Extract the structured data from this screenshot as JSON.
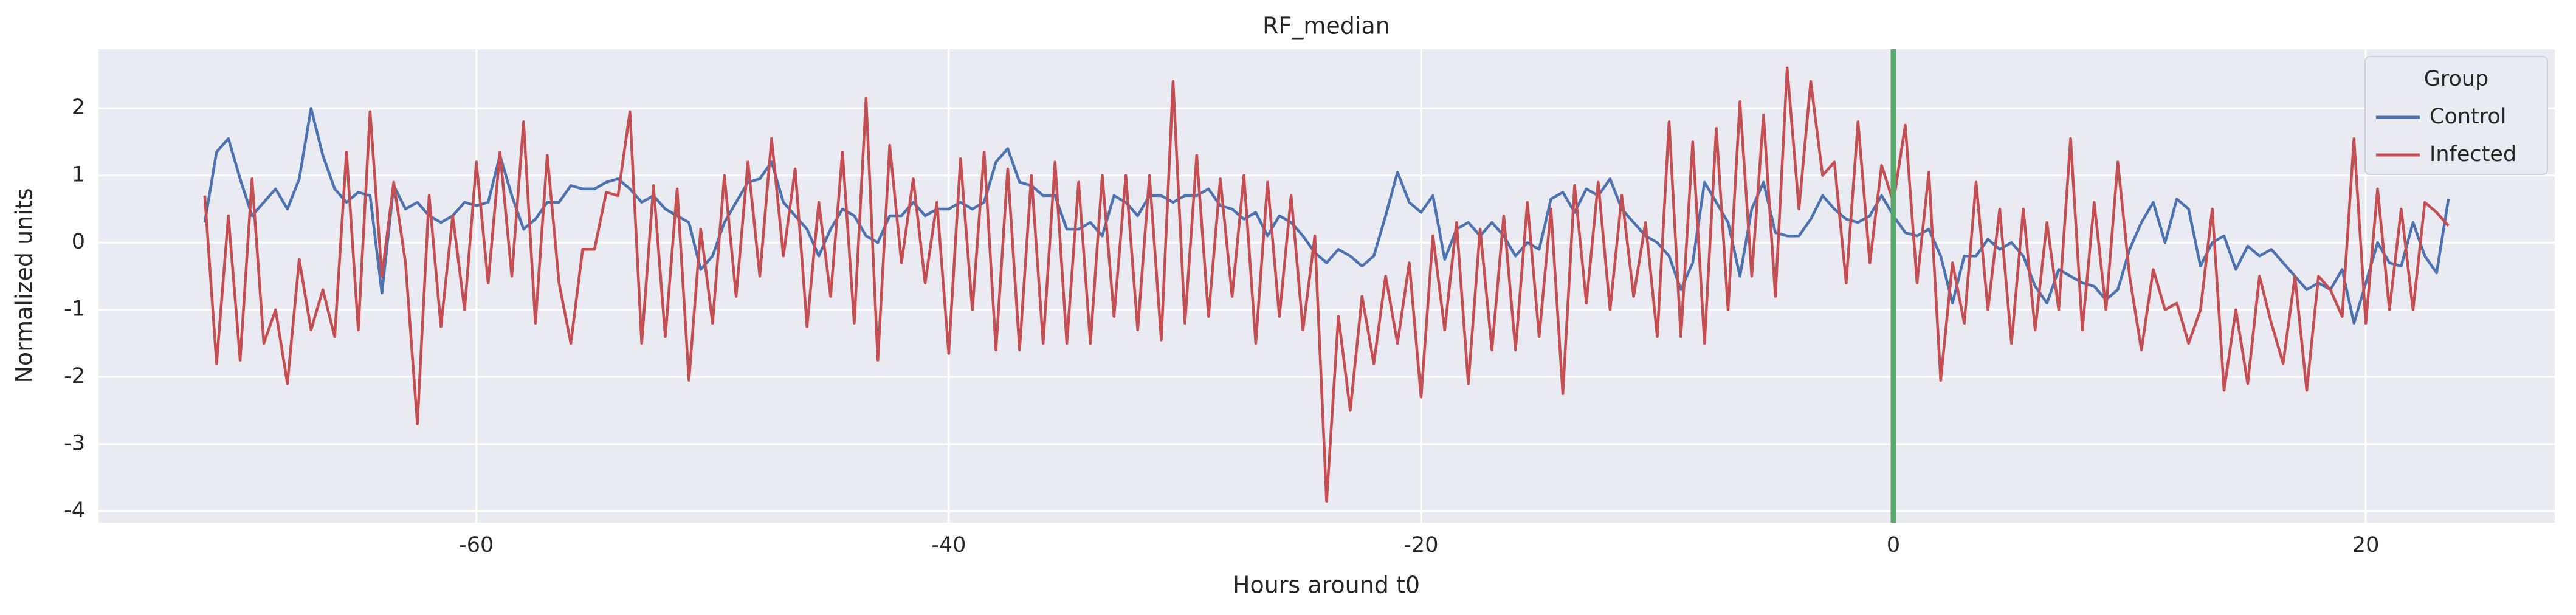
{
  "chart_data": {
    "type": "line",
    "title": "RF_median",
    "x_label": "Hours around t0",
    "y_label": "Normalized units",
    "legend_title": "Group",
    "legend": "upper right",
    "grid": true,
    "xlim": [
      -76,
      28
    ],
    "ylim": [
      -4.17,
      2.88
    ],
    "xticks": [
      -60,
      -40,
      -20,
      0,
      20
    ],
    "yticks": [
      -4,
      -3,
      -2,
      -1,
      0,
      1,
      2
    ],
    "vline": {
      "x": 0,
      "color": "#55a868"
    },
    "x": [
      -71.5,
      -71,
      -70.5,
      -70,
      -69.5,
      -69,
      -68.5,
      -68,
      -67.5,
      -67,
      -66.5,
      -66,
      -65.5,
      -65,
      -64.5,
      -64,
      -63.5,
      -63,
      -62.5,
      -62,
      -61.5,
      -61,
      -60.5,
      -60,
      -59.5,
      -59,
      -58.5,
      -58,
      -57.5,
      -57,
      -56.5,
      -56,
      -55.5,
      -55,
      -54.5,
      -54,
      -53.5,
      -53,
      -52.5,
      -52,
      -51.5,
      -51,
      -50.5,
      -50,
      -49.5,
      -49,
      -48.5,
      -48,
      -47.5,
      -47,
      -46.5,
      -46,
      -45.5,
      -45,
      -44.5,
      -44,
      -43.5,
      -43,
      -42.5,
      -42,
      -41.5,
      -41,
      -40.5,
      -40,
      -39.5,
      -39,
      -38.5,
      -38,
      -37.5,
      -37,
      -36.5,
      -36,
      -35.5,
      -35,
      -34.5,
      -34,
      -33.5,
      -33,
      -32.5,
      -32,
      -31.5,
      -31,
      -30.5,
      -30,
      -29.5,
      -29,
      -28.5,
      -28,
      -27.5,
      -27,
      -26.5,
      -26,
      -25.5,
      -25,
      -24.5,
      -24,
      -23.5,
      -23,
      -22.5,
      -22,
      -21.5,
      -21,
      -20.5,
      -20,
      -19.5,
      -19,
      -18.5,
      -18,
      -17.5,
      -17,
      -16.5,
      -16,
      -15.5,
      -15,
      -14.5,
      -14,
      -13.5,
      -13,
      -12.5,
      -12,
      -11.5,
      -11,
      -10.5,
      -10,
      -9.5,
      -9,
      -8.5,
      -8,
      -7.5,
      -7,
      -6.5,
      -6,
      -5.5,
      -5,
      -4.5,
      -4,
      -3.5,
      -3,
      -2.5,
      -2,
      -1.5,
      -1,
      -0.5,
      0,
      0.5,
      1,
      1.5,
      2,
      2.5,
      3,
      3.5,
      4,
      4.5,
      5,
      5.5,
      6,
      6.5,
      7,
      7.5,
      8,
      8.5,
      9,
      9.5,
      10,
      10.5,
      11,
      11.5,
      12,
      12.5,
      13,
      13.5,
      14,
      14.5,
      15,
      15.5,
      16,
      16.5,
      17,
      17.5,
      18,
      18.5,
      19,
      19.5,
      20,
      20.5,
      21,
      21.5,
      22,
      22.5,
      23,
      23.5
    ],
    "series": [
      {
        "name": "Control",
        "color": "#4c72b0",
        "values": [
          0.3,
          1.35,
          1.55,
          0.95,
          0.4,
          0.6,
          0.8,
          0.5,
          0.95,
          2.0,
          1.3,
          0.8,
          0.6,
          0.75,
          0.7,
          -0.75,
          0.85,
          0.5,
          0.6,
          0.4,
          0.3,
          0.4,
          0.6,
          0.55,
          0.6,
          1.3,
          0.7,
          0.2,
          0.35,
          0.6,
          0.6,
          0.85,
          0.8,
          0.8,
          0.9,
          0.95,
          0.8,
          0.6,
          0.7,
          0.5,
          0.4,
          0.3,
          -0.4,
          -0.2,
          0.3,
          0.6,
          0.9,
          0.95,
          1.2,
          0.6,
          0.4,
          0.2,
          -0.2,
          0.2,
          0.5,
          0.4,
          0.1,
          0.0,
          0.4,
          0.4,
          0.6,
          0.4,
          0.5,
          0.5,
          0.6,
          0.5,
          0.6,
          1.2,
          1.4,
          0.9,
          0.85,
          0.7,
          0.7,
          0.2,
          0.2,
          0.3,
          0.1,
          0.7,
          0.6,
          0.4,
          0.7,
          0.7,
          0.6,
          0.7,
          0.7,
          0.8,
          0.55,
          0.5,
          0.35,
          0.45,
          0.1,
          0.4,
          0.3,
          0.1,
          -0.15,
          -0.3,
          -0.1,
          -0.2,
          -0.35,
          -0.2,
          0.4,
          1.05,
          0.6,
          0.45,
          0.7,
          -0.25,
          0.2,
          0.3,
          0.1,
          0.3,
          0.1,
          -0.2,
          0.0,
          -0.1,
          0.65,
          0.75,
          0.45,
          0.8,
          0.7,
          0.95,
          0.5,
          0.3,
          0.1,
          0.0,
          -0.2,
          -0.7,
          -0.3,
          0.9,
          0.6,
          0.3,
          -0.5,
          0.5,
          0.9,
          0.15,
          0.1,
          0.1,
          0.35,
          0.7,
          0.5,
          0.35,
          0.3,
          0.4,
          0.7,
          0.4,
          0.15,
          0.1,
          0.2,
          -0.2,
          -0.9,
          -0.2,
          -0.2,
          0.05,
          -0.1,
          0.0,
          -0.2,
          -0.65,
          -0.9,
          -0.4,
          -0.5,
          -0.6,
          -0.65,
          -0.85,
          -0.7,
          -0.1,
          0.3,
          0.6,
          0.0,
          0.65,
          0.5,
          -0.35,
          0.0,
          0.1,
          -0.4,
          -0.05,
          -0.2,
          -0.1,
          -0.3,
          -0.5,
          -0.7,
          -0.6,
          -0.7,
          -0.4,
          -1.2,
          -0.6,
          0.0,
          -0.3,
          -0.35,
          0.3,
          -0.2,
          -0.45,
          0.65
        ]
      },
      {
        "name": "Infected",
        "color": "#c44e52",
        "values": [
          0.7,
          -1.8,
          0.4,
          -1.75,
          0.95,
          -1.5,
          -1.0,
          -2.1,
          -0.25,
          -1.3,
          -0.7,
          -1.4,
          1.35,
          -1.3,
          1.95,
          -0.5,
          0.9,
          -0.3,
          -2.7,
          0.7,
          -1.25,
          0.4,
          -1.0,
          1.2,
          -0.6,
          1.35,
          -0.5,
          1.8,
          -1.2,
          1.3,
          -0.6,
          -1.5,
          -0.1,
          -0.1,
          0.75,
          0.7,
          1.95,
          -1.5,
          0.85,
          -1.4,
          0.8,
          -2.05,
          0.2,
          -1.2,
          1.0,
          -0.8,
          1.2,
          -0.5,
          1.55,
          -0.2,
          1.1,
          -1.25,
          0.6,
          -0.8,
          1.35,
          -1.2,
          2.15,
          -1.75,
          1.45,
          -0.3,
          0.95,
          -0.6,
          0.6,
          -1.65,
          1.25,
          -1.0,
          1.35,
          -1.6,
          1.1,
          -1.6,
          1.0,
          -1.5,
          1.2,
          -1.5,
          0.9,
          -1.5,
          1.0,
          -1.1,
          1.0,
          -1.3,
          1.0,
          -1.45,
          2.4,
          -1.2,
          1.3,
          -1.1,
          0.95,
          -0.8,
          1.0,
          -1.5,
          0.9,
          -1.1,
          0.7,
          -1.3,
          0.1,
          -3.85,
          -1.1,
          -2.5,
          -0.8,
          -1.8,
          -0.5,
          -1.5,
          -0.3,
          -2.3,
          0.1,
          -1.3,
          0.3,
          -2.1,
          0.2,
          -1.6,
          0.4,
          -1.6,
          0.6,
          -1.4,
          0.5,
          -2.25,
          0.85,
          -0.9,
          0.9,
          -1.0,
          0.7,
          -0.8,
          0.3,
          -1.4,
          1.8,
          -1.4,
          1.5,
          -1.5,
          1.7,
          -1.0,
          2.1,
          -0.5,
          1.9,
          -0.8,
          2.6,
          0.5,
          2.4,
          1.0,
          1.2,
          -0.6,
          1.8,
          -0.3,
          1.15,
          0.6,
          1.75,
          -0.6,
          1.05,
          -2.05,
          -0.3,
          -1.2,
          0.9,
          -1.0,
          0.5,
          -1.5,
          0.5,
          -1.3,
          0.3,
          -1.0,
          1.55,
          -1.3,
          0.6,
          -1.0,
          1.2,
          -0.5,
          -1.6,
          -0.4,
          -1.0,
          -0.9,
          -1.5,
          -1.0,
          0.5,
          -2.2,
          -1.0,
          -2.1,
          -0.5,
          -1.2,
          -1.8,
          -0.5,
          -2.2,
          -0.5,
          -0.7,
          -1.1,
          1.55,
          -1.2,
          0.8,
          -1.0,
          0.5,
          -1.0,
          0.6,
          0.45,
          0.25
        ]
      }
    ]
  }
}
